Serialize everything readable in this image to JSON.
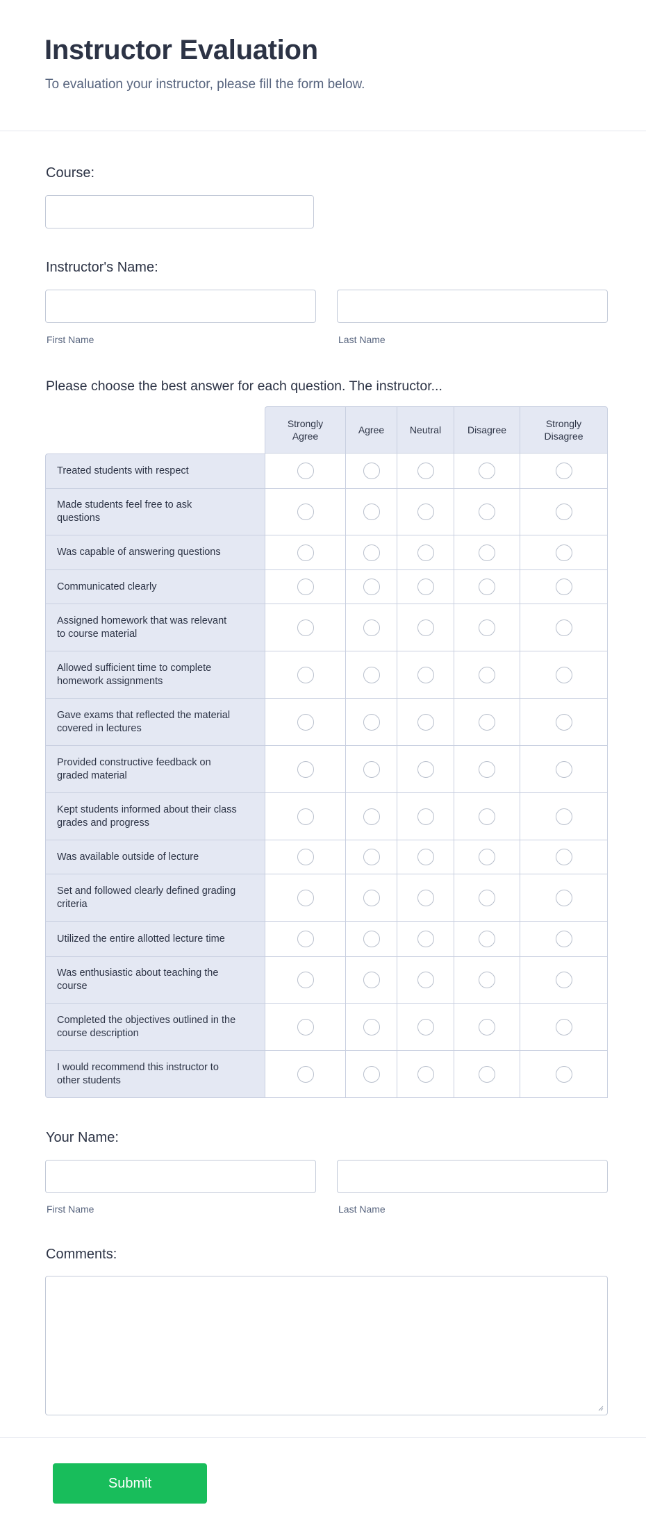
{
  "header": {
    "title": "Instructor Evaluation",
    "subtitle": "To evaluation your instructor, please fill the form below."
  },
  "course": {
    "label": "Course:",
    "value": ""
  },
  "instructor_name": {
    "label": "Instructor's Name:",
    "first_sublabel": "First Name",
    "last_sublabel": "Last Name",
    "first_value": "",
    "last_value": ""
  },
  "matrix": {
    "question": "Please choose the best answer for each question. The instructor...",
    "columns": [
      "Strongly Agree",
      "Agree",
      "Neutral",
      "Disagree",
      "Strongly Disagree"
    ],
    "rows": [
      "Treated students with respect",
      "Made students feel free to ask questions",
      "Was capable of answering questions",
      "Communicated clearly",
      "Assigned homework that was relevant to course material",
      "Allowed sufficient time to complete homework assignments",
      "Gave exams that reflected the material covered in lectures",
      "Provided constructive feedback on graded material",
      "Kept students informed about their class grades and progress",
      "Was available outside of lecture",
      "Set and followed clearly defined grading criteria",
      "Utilized the entire allotted lecture time",
      "Was enthusiastic about teaching the course",
      "Completed the objectives outlined in the course description",
      "I would recommend this instructor to other students"
    ]
  },
  "your_name": {
    "label": "Your Name:",
    "first_sublabel": "First Name",
    "last_sublabel": "Last Name"
  },
  "comments": {
    "label": "Comments:",
    "value": ""
  },
  "submit": {
    "label": "Submit"
  },
  "colors": {
    "accent": "#18bd5b",
    "header_bg": "#e4e8f3",
    "text": "#2c3345",
    "border": "#c3cad8"
  }
}
